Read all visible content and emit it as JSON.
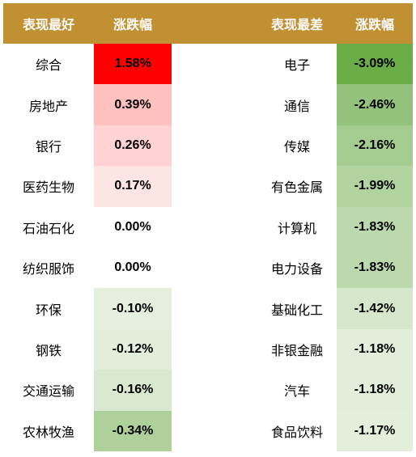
{
  "header": {
    "best_label": "表现最好",
    "best_change_label": "涨跌幅",
    "worst_label": "表现最差",
    "worst_change_label": "涨跌幅"
  },
  "colors": {
    "header_bg": "#c19032",
    "header_text": "#ffffff"
  },
  "rows": [
    {
      "best_name": "综合",
      "best_value": "1.58%",
      "best_color": "#ff0000",
      "worst_name": "电子",
      "worst_value": "-3.09%",
      "worst_color": "#6aac45"
    },
    {
      "best_name": "房地产",
      "best_value": "0.39%",
      "best_color": "#ffc0c0",
      "worst_name": "通信",
      "worst_value": "-2.46%",
      "worst_color": "#93c27c"
    },
    {
      "best_name": "银行",
      "best_value": "0.26%",
      "best_color": "#ffd3d3",
      "worst_name": "传媒",
      "worst_value": "-2.16%",
      "worst_color": "#a4cc8f"
    },
    {
      "best_name": "医药生物",
      "best_value": "0.17%",
      "best_color": "#ffe4e4",
      "worst_name": "有色金属",
      "worst_value": "-1.99%",
      "worst_color": "#b1d3a0"
    },
    {
      "best_name": "石油石化",
      "best_value": "0.00%",
      "best_color": "#ffffff",
      "worst_name": "计算机",
      "worst_value": "-1.83%",
      "worst_color": "#bcd9ad"
    },
    {
      "best_name": "纺织服饰",
      "best_value": "0.00%",
      "best_color": "#ffffff",
      "worst_name": "电力设备",
      "worst_value": "-1.83%",
      "worst_color": "#bcd9ad"
    },
    {
      "best_name": "环保",
      "best_value": "-0.10%",
      "best_color": "#e4efdd",
      "worst_name": "基础化工",
      "worst_value": "-1.42%",
      "worst_color": "#d5e7cb"
    },
    {
      "best_name": "钢铁",
      "best_value": "-0.12%",
      "best_color": "#e2eeda",
      "worst_name": "非银金融",
      "worst_value": "-1.18%",
      "worst_color": "#e2eed9"
    },
    {
      "best_name": "交通运输",
      "best_value": "-0.16%",
      "best_color": "#d9e9d0",
      "worst_name": "汽车",
      "worst_value": "-1.18%",
      "worst_color": "#e2eed9"
    },
    {
      "best_name": "农林牧渔",
      "best_value": "-0.34%",
      "best_color": "#aed19c",
      "worst_name": "食品饮料",
      "worst_value": "-1.17%",
      "worst_color": "#e3efdb"
    }
  ]
}
